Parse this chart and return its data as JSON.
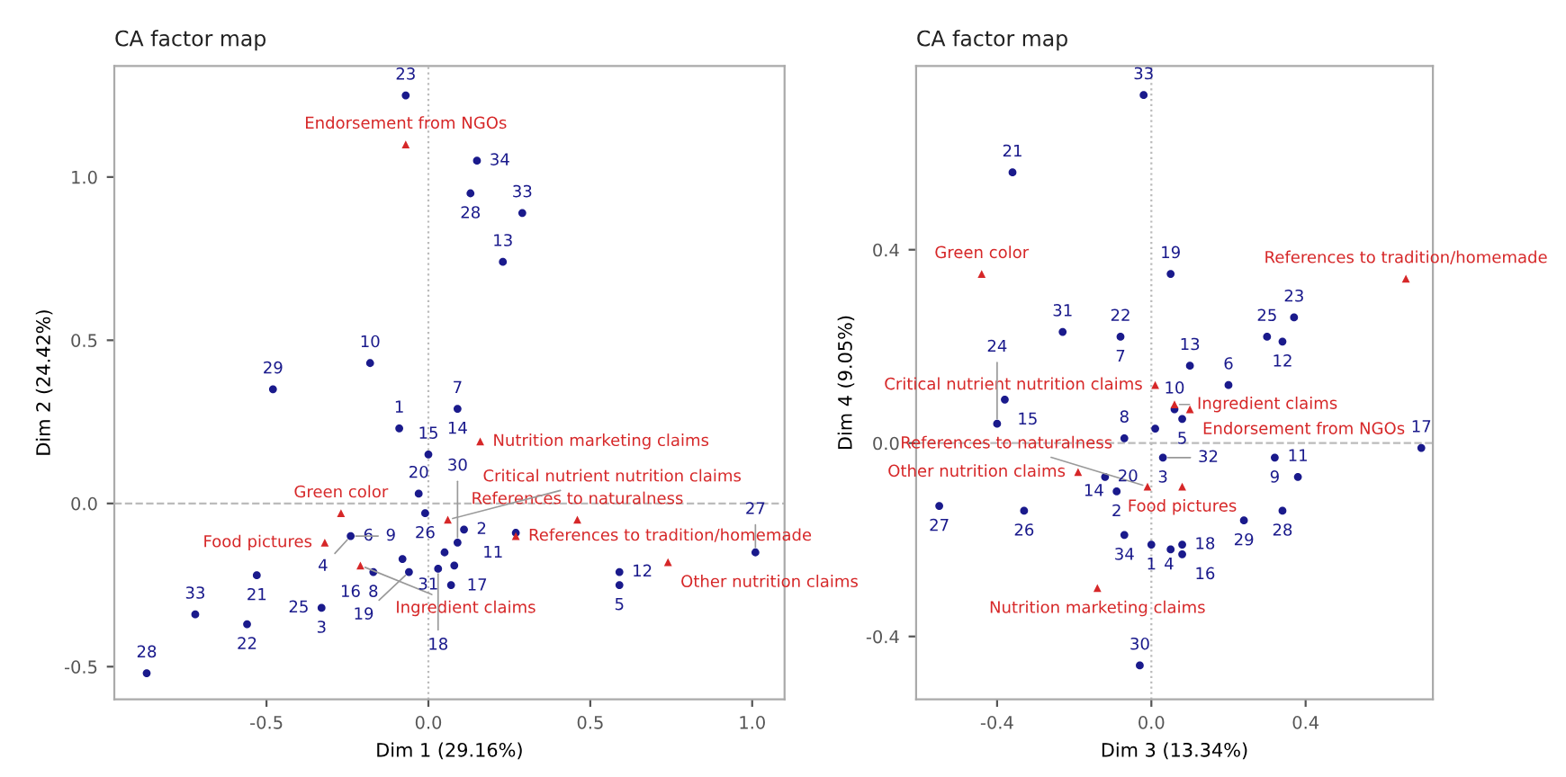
{
  "chart_data": [
    {
      "type": "scatter",
      "title": "CA factor map",
      "xlabel": "Dim 1 (29.16%)",
      "ylabel": "Dim 2 (24.42%)",
      "xlim": [
        -0.97,
        1.1
      ],
      "ylim": [
        -0.6,
        1.34
      ],
      "xticks": [
        {
          "value": -0.5,
          "label": "-0.5"
        },
        {
          "value": 0.0,
          "label": "0.0"
        },
        {
          "value": 0.5,
          "label": "0.5"
        },
        {
          "value": 1.0,
          "label": "1.0"
        }
      ],
      "yticks": [
        {
          "value": -0.5,
          "label": "-0.5"
        },
        {
          "value": 0.0,
          "label": "0.0"
        },
        {
          "value": 0.5,
          "label": "0.5"
        },
        {
          "value": 1.0,
          "label": "1.0"
        }
      ],
      "grid": false,
      "legend": false,
      "ref_lines": [
        {
          "axis": "x",
          "value": 0,
          "color": "#bbbbbb",
          "line_style": "dotted"
        },
        {
          "axis": "y",
          "value": 0,
          "color": "#bbbbbb",
          "line_style": "dashed"
        }
      ],
      "series": [
        {
          "color": "#1a1a8c",
          "marker": "circle",
          "x": [
            -0.07,
            0.15,
            0.13,
            0.29,
            0.23,
            -0.18,
            -0.48,
            0.09,
            -0.09,
            0.0,
            -0.03,
            -0.01,
            -0.24,
            0.11,
            0.09,
            0.05,
            0.27,
            -0.08,
            -0.06,
            0.03,
            0.08,
            0.07,
            -0.17,
            -0.53,
            -0.33,
            -0.56,
            -0.72,
            -0.87,
            0.59,
            0.59,
            1.01
          ],
          "values": [
            1.25,
            1.05,
            0.95,
            0.89,
            0.74,
            0.43,
            0.35,
            0.29,
            0.23,
            0.15,
            0.03,
            -0.03,
            -0.1,
            -0.08,
            -0.12,
            -0.15,
            -0.09,
            -0.17,
            -0.21,
            -0.2,
            -0.19,
            -0.25,
            -0.21,
            -0.22,
            -0.32,
            -0.37,
            -0.34,
            -0.52,
            -0.21,
            -0.25,
            -0.15
          ]
        },
        {
          "color": "#d62728",
          "marker": "triangle",
          "x": [
            -0.07,
            0.16,
            0.06,
            -0.27,
            -0.32,
            -0.21,
            0.27,
            0.46,
            0.74
          ],
          "values": [
            1.1,
            0.19,
            -0.05,
            -0.03,
            -0.12,
            -0.19,
            -0.1,
            -0.05,
            -0.18
          ]
        }
      ],
      "annotations": [
        {
          "text": "23",
          "x": -0.07,
          "y": 1.25
        },
        {
          "text": "34",
          "x": 0.15,
          "y": 1.05
        },
        {
          "text": "33",
          "x": 0.29,
          "y": 0.89
        },
        {
          "text": "28",
          "x": 0.13,
          "y": 0.95
        },
        {
          "text": "13",
          "x": 0.23,
          "y": 0.74
        },
        {
          "text": "10",
          "x": -0.18,
          "y": 0.43
        },
        {
          "text": "7",
          "x": 0.09,
          "y": 0.29
        },
        {
          "text": "29",
          "x": -0.48,
          "y": 0.35
        },
        {
          "text": "1",
          "x": -0.09,
          "y": 0.23
        },
        {
          "text": "14",
          "x": 0.09,
          "y": 0.29
        },
        {
          "text": "15",
          "x": 0.0,
          "y": 0.15
        },
        {
          "text": "20",
          "x": -0.03,
          "y": 0.03
        },
        {
          "text": "6",
          "x": -0.24,
          "y": -0.1
        },
        {
          "text": "4",
          "x": -0.24,
          "y": -0.1
        },
        {
          "text": "2",
          "x": 0.11,
          "y": -0.08
        },
        {
          "text": "26",
          "x": -0.01,
          "y": -0.03
        },
        {
          "text": "21",
          "x": -0.53,
          "y": -0.22
        },
        {
          "text": "8",
          "x": -0.17,
          "y": -0.21
        },
        {
          "text": "11",
          "x": 0.27,
          "y": -0.09
        },
        {
          "text": "12",
          "x": 0.59,
          "y": -0.21
        },
        {
          "text": "3",
          "x": -0.33,
          "y": -0.32
        },
        {
          "text": "9",
          "x": -0.24,
          "y": -0.1
        },
        {
          "text": "17",
          "x": 0.08,
          "y": -0.19
        },
        {
          "text": "27",
          "x": 1.01,
          "y": -0.15
        },
        {
          "text": "33",
          "x": -0.72,
          "y": -0.34
        },
        {
          "text": "16",
          "x": -0.17,
          "y": -0.21
        },
        {
          "text": "19",
          "x": -0.06,
          "y": -0.21
        },
        {
          "text": "31",
          "x": 0.07,
          "y": -0.25
        },
        {
          "text": "30",
          "x": 0.09,
          "y": -0.12
        },
        {
          "text": "5",
          "x": 0.59,
          "y": -0.25
        },
        {
          "text": "25",
          "x": -0.33,
          "y": -0.32
        },
        {
          "text": "18",
          "x": 0.03,
          "y": -0.2
        },
        {
          "text": "22",
          "x": -0.56,
          "y": -0.37
        },
        {
          "text": "28",
          "x": -0.87,
          "y": -0.52
        },
        {
          "text": "Endorsement from NGOs",
          "x": -0.07,
          "y": 1.1
        },
        {
          "text": "Nutrition marketing claims",
          "x": 0.16,
          "y": 0.19
        },
        {
          "text": "References to naturalness",
          "x": 0.46,
          "y": -0.05
        },
        {
          "text": "Green color",
          "x": -0.27,
          "y": -0.03
        },
        {
          "text": "Critical nutrient nutrition claims",
          "x": 0.06,
          "y": -0.05
        },
        {
          "text": "Food pictures",
          "x": -0.32,
          "y": -0.12
        },
        {
          "text": "Other nutrition claims",
          "x": 0.74,
          "y": -0.18
        },
        {
          "text": "References to tradition/homemade",
          "x": 0.27,
          "y": -0.1
        },
        {
          "text": "Ingredient claims",
          "x": -0.21,
          "y": -0.19
        }
      ]
    },
    {
      "type": "scatter",
      "title": "CA factor map",
      "xlabel": "Dim 3 (13.34%)",
      "ylabel": "Dim 4 (9.05%)",
      "xlim": [
        -0.61,
        0.73
      ],
      "ylim": [
        -0.53,
        0.78
      ],
      "xticks": [
        {
          "value": -0.4,
          "label": "-0.4"
        },
        {
          "value": 0.0,
          "label": "0.0"
        },
        {
          "value": 0.4,
          "label": "0.4"
        }
      ],
      "yticks": [
        {
          "value": -0.4,
          "label": "-0.4"
        },
        {
          "value": 0.0,
          "label": "0.0"
        },
        {
          "value": 0.4,
          "label": "0.4"
        }
      ],
      "grid": false,
      "legend": false,
      "ref_lines": [
        {
          "axis": "x",
          "value": 0,
          "color": "#bbbbbb",
          "line_style": "dotted"
        },
        {
          "axis": "y",
          "value": 0,
          "color": "#bbbbbb",
          "line_style": "dashed"
        }
      ],
      "series": [
        {
          "color": "#1a1a8c",
          "marker": "circle",
          "x": [
            -0.02,
            -0.36,
            0.05,
            -0.23,
            -0.08,
            0.3,
            0.34,
            0.37,
            0.1,
            0.2,
            -0.38,
            -0.4,
            -0.07,
            0.01,
            0.06,
            0.08,
            -0.12,
            0.03,
            -0.09,
            0.32,
            0.38,
            0.34,
            0.24,
            0.7,
            -0.55,
            -0.33,
            -0.07,
            0.0,
            0.05,
            0.08,
            0.08,
            -0.03
          ],
          "values": [
            0.72,
            0.56,
            0.35,
            0.23,
            0.22,
            0.22,
            0.21,
            0.26,
            0.16,
            0.12,
            0.09,
            0.04,
            0.01,
            0.03,
            0.07,
            0.05,
            -0.07,
            -0.03,
            -0.1,
            -0.03,
            -0.07,
            -0.14,
            -0.16,
            -0.01,
            -0.13,
            -0.14,
            -0.19,
            -0.21,
            -0.22,
            -0.21,
            -0.23,
            -0.46
          ]
        },
        {
          "color": "#d62728",
          "marker": "triangle",
          "x": [
            -0.44,
            0.66,
            0.01,
            0.06,
            0.1,
            -0.19,
            -0.14,
            0.08,
            -0.01
          ],
          "values": [
            0.35,
            0.34,
            0.12,
            0.08,
            0.07,
            -0.06,
            -0.3,
            -0.09,
            -0.09
          ]
        }
      ],
      "annotations": [
        {
          "text": "33",
          "x": -0.02,
          "y": 0.72
        },
        {
          "text": "21",
          "x": -0.36,
          "y": 0.56
        },
        {
          "text": "19",
          "x": 0.05,
          "y": 0.35
        },
        {
          "text": "23",
          "x": 0.37,
          "y": 0.26
        },
        {
          "text": "22",
          "x": -0.08,
          "y": 0.22
        },
        {
          "text": "25",
          "x": 0.3,
          "y": 0.22
        },
        {
          "text": "13",
          "x": 0.1,
          "y": 0.16
        },
        {
          "text": "31",
          "x": -0.23,
          "y": 0.23
        },
        {
          "text": "12",
          "x": 0.34,
          "y": 0.21
        },
        {
          "text": "7",
          "x": -0.08,
          "y": 0.22
        },
        {
          "text": "15",
          "x": -0.38,
          "y": 0.09
        },
        {
          "text": "10",
          "x": 0.06,
          "y": 0.07
        },
        {
          "text": "8",
          "x": -0.07,
          "y": 0.01
        },
        {
          "text": "6",
          "x": 0.2,
          "y": 0.12
        },
        {
          "text": "9",
          "x": 0.32,
          "y": -0.03
        },
        {
          "text": "5",
          "x": 0.08,
          "y": 0.05
        },
        {
          "text": "17",
          "x": 0.7,
          "y": -0.01
        },
        {
          "text": "24",
          "x": -0.4,
          "y": 0.04
        },
        {
          "text": "20",
          "x": -0.12,
          "y": -0.07
        },
        {
          "text": "32",
          "x": 0.03,
          "y": -0.03
        },
        {
          "text": "3",
          "x": 0.03,
          "y": -0.03
        },
        {
          "text": "11",
          "x": 0.38,
          "y": -0.07
        },
        {
          "text": "2",
          "x": -0.09,
          "y": -0.1
        },
        {
          "text": "14",
          "x": -0.09,
          "y": -0.1
        },
        {
          "text": "27",
          "x": -0.55,
          "y": -0.13
        },
        {
          "text": "26",
          "x": -0.33,
          "y": -0.14
        },
        {
          "text": "1",
          "x": 0.0,
          "y": -0.21
        },
        {
          "text": "18",
          "x": 0.08,
          "y": -0.21
        },
        {
          "text": "28",
          "x": 0.34,
          "y": -0.14
        },
        {
          "text": "34",
          "x": -0.07,
          "y": -0.19
        },
        {
          "text": "29",
          "x": 0.24,
          "y": -0.16
        },
        {
          "text": "4",
          "x": 0.0,
          "y": -0.21
        },
        {
          "text": "16",
          "x": 0.08,
          "y": -0.23
        },
        {
          "text": "30",
          "x": -0.03,
          "y": -0.46
        },
        {
          "text": "Critical nutrient nutrition claims",
          "x": 0.01,
          "y": 0.12
        },
        {
          "text": "Green color",
          "x": -0.44,
          "y": 0.35
        },
        {
          "text": "References to tradition/homemade",
          "x": 0.66,
          "y": 0.34
        },
        {
          "text": "Ingredient claims",
          "x": 0.06,
          "y": 0.08
        },
        {
          "text": "Endorsement from NGOs",
          "x": 0.1,
          "y": 0.07
        },
        {
          "text": "Other nutrition claims",
          "x": -0.19,
          "y": -0.06
        },
        {
          "text": "Food pictures",
          "x": 0.08,
          "y": -0.09
        },
        {
          "text": "Nutrition marketing claims",
          "x": -0.14,
          "y": -0.3
        },
        {
          "text": "References to naturalness",
          "x": -0.01,
          "y": -0.09
        }
      ]
    }
  ]
}
